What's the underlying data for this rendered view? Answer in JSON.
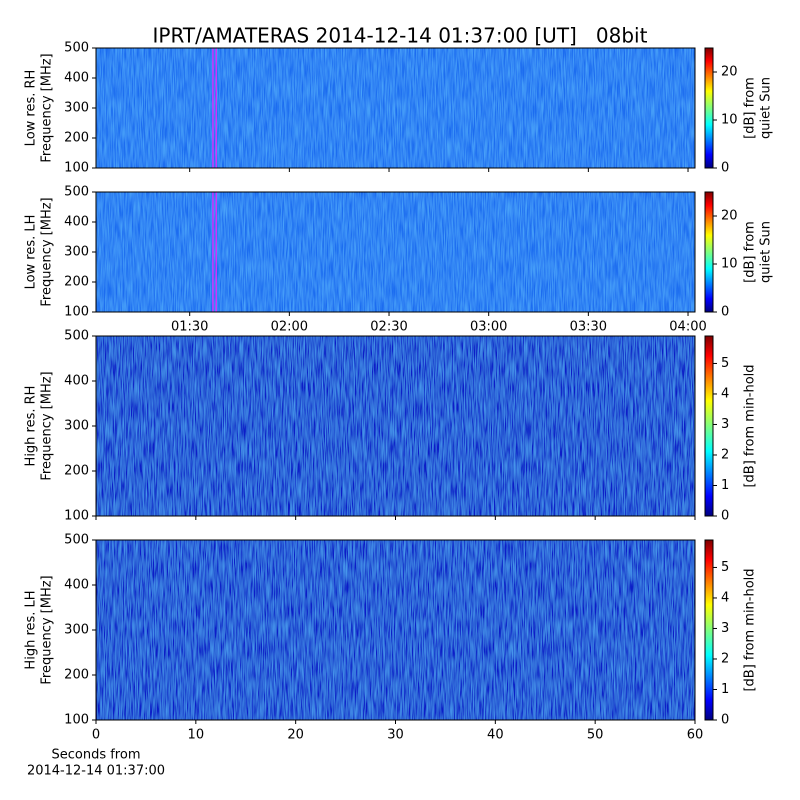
{
  "chart_data": [
    {
      "type": "spectrogram",
      "title": "IPRT/AMATERAS 2014-12-14 01:37:00 [UT]   08bit",
      "ylabel": [
        "Low res. RH",
        "Frequency [MHz]"
      ],
      "ylim": [
        100,
        500
      ],
      "yticks": [
        100,
        200,
        300,
        400,
        500
      ],
      "xlim": [
        61.8,
        242.1
      ],
      "markers": [
        97,
        98
      ],
      "marker_color": "#cc33ff",
      "colormap": "jet",
      "colorbar": {
        "label": [
          "[dB] from",
          "quiet Sun"
        ],
        "clim": [
          0,
          25
        ],
        "ticks": [
          0,
          10,
          20
        ]
      }
    },
    {
      "type": "spectrogram",
      "ylabel": [
        "Low res. LH",
        "Frequency [MHz]"
      ],
      "ylim": [
        100,
        500
      ],
      "yticks": [
        100,
        200,
        300,
        400,
        500
      ],
      "xlim": [
        61.8,
        242.1
      ],
      "xticks": [
        {
          "value": 90,
          "label": "01:30"
        },
        {
          "value": 120,
          "label": "02:00"
        },
        {
          "value": 150,
          "label": "02:30"
        },
        {
          "value": 180,
          "label": "03:00"
        },
        {
          "value": 210,
          "label": "03:30"
        },
        {
          "value": 240,
          "label": "04:00"
        }
      ],
      "markers": [
        97,
        98
      ],
      "marker_color": "#cc33ff",
      "colormap": "jet",
      "colorbar": {
        "label": [
          "[dB] from",
          "quiet Sun"
        ],
        "clim": [
          0,
          25
        ],
        "ticks": [
          0,
          10,
          20
        ]
      }
    },
    {
      "type": "spectrogram",
      "ylabel": [
        "High res. RH",
        "Frequency [MHz]"
      ],
      "ylim": [
        100,
        500
      ],
      "yticks": [
        100,
        200,
        300,
        400,
        500
      ],
      "xlim": [
        0,
        60
      ],
      "colormap": "jet",
      "colorbar": {
        "label": [
          "[dB] from min-hold"
        ],
        "clim": [
          0,
          5.9
        ],
        "ticks": [
          0,
          1,
          2,
          3,
          4,
          5
        ]
      }
    },
    {
      "type": "spectrogram",
      "ylabel": [
        "High res. LH",
        "Frequency [MHz]"
      ],
      "ylim": [
        100,
        500
      ],
      "yticks": [
        100,
        200,
        300,
        400,
        500
      ],
      "xlim": [
        0,
        60
      ],
      "xticks": [
        0,
        10,
        20,
        30,
        40,
        50,
        60
      ],
      "xlabel": [
        "Seconds from",
        "2014-12-14 01:37:00"
      ],
      "colormap": "jet",
      "colorbar": {
        "label": [
          "[dB] from min-hold"
        ],
        "clim": [
          0,
          5.9
        ],
        "ticks": [
          0,
          1,
          2,
          3,
          4,
          5
        ]
      }
    }
  ]
}
